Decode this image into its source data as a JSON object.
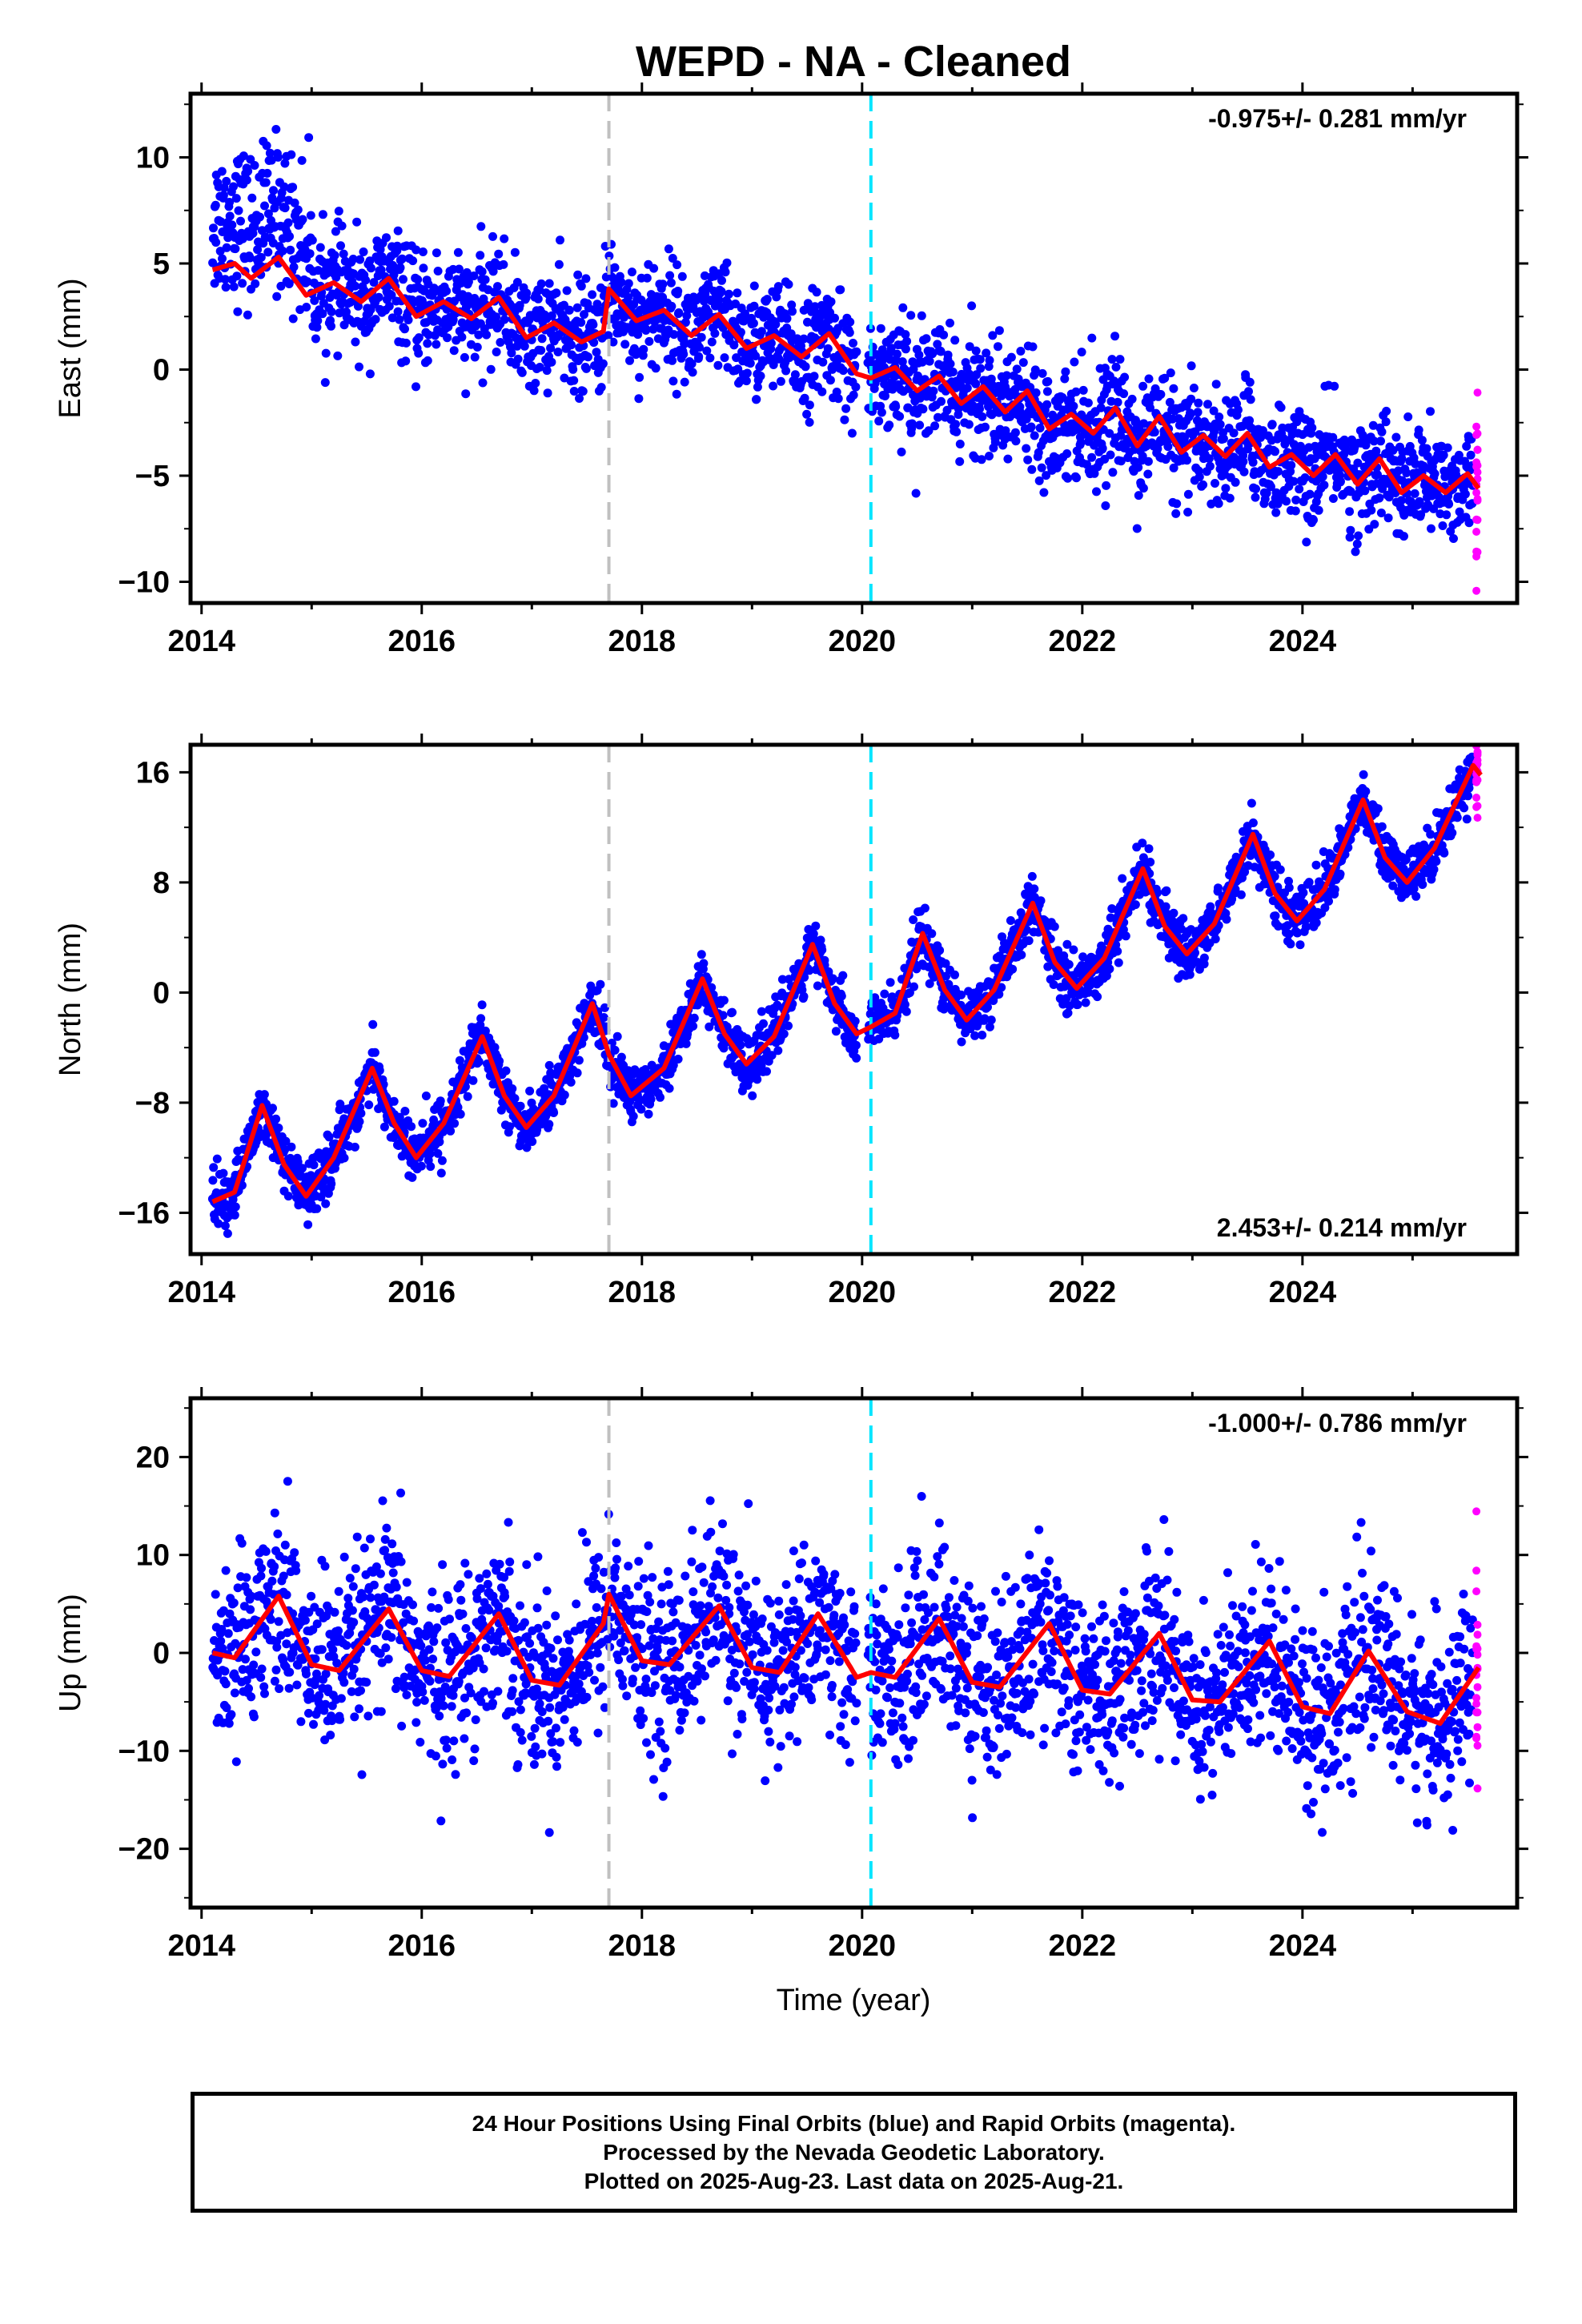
{
  "title": "WEPD  - NA - Cleaned",
  "xlabel": "Time (year)",
  "colors": {
    "final": "#0000ff",
    "rapid": "#ff00ff",
    "model": "#ff0000",
    "line_grey": "#c0c0c0",
    "line_cyan": "#00e5ff"
  },
  "footer": [
    "24 Hour Positions Using Final Orbits (blue) and Rapid Orbits (magenta).",
    "Processed by the Nevada Geodetic Laboratory.",
    "Plotted on 2025-Aug-23. Last data on 2025-Aug-21."
  ],
  "chart_data": [
    {
      "type": "scatter",
      "component": "east",
      "ylabel": "East (mm)",
      "rate_label": "-0.975+/- 0.281 mm/yr",
      "rate_position": "top-right",
      "xlim": [
        2013.9,
        2025.95
      ],
      "ylim": [
        -11,
        13
      ],
      "xticks": [
        2014,
        2016,
        2018,
        2020,
        2022,
        2024
      ],
      "yticks": [
        -10,
        -5,
        0,
        5,
        10
      ],
      "vertical_lines": [
        {
          "x": 2017.7,
          "color": "grey"
        },
        {
          "x": 2020.08,
          "color": "cyan"
        }
      ],
      "model_curve": {
        "x": [
          2014.1,
          2014.3,
          2014.45,
          2014.7,
          2014.95,
          2015.2,
          2015.45,
          2015.7,
          2015.95,
          2016.2,
          2016.45,
          2016.7,
          2016.95,
          2017.2,
          2017.45,
          2017.65,
          2017.7,
          2017.95,
          2018.2,
          2018.45,
          2018.7,
          2018.95,
          2019.2,
          2019.45,
          2019.7,
          2019.95,
          2020.08,
          2020.3,
          2020.5,
          2020.7,
          2020.9,
          2021.1,
          2021.3,
          2021.5,
          2021.7,
          2021.9,
          2022.1,
          2022.3,
          2022.5,
          2022.7,
          2022.9,
          2023.1,
          2023.3,
          2023.5,
          2023.7,
          2023.9,
          2024.1,
          2024.3,
          2024.5,
          2024.7,
          2024.9,
          2025.1,
          2025.3,
          2025.5,
          2025.6
        ],
        "y": [
          4.7,
          5.0,
          4.3,
          5.3,
          3.5,
          4.1,
          3.2,
          4.3,
          2.5,
          3.2,
          2.4,
          3.4,
          1.5,
          2.2,
          1.3,
          1.8,
          3.8,
          2.3,
          2.8,
          1.6,
          2.6,
          1.0,
          1.6,
          0.6,
          1.7,
          -0.2,
          -0.4,
          0.1,
          -1.0,
          -0.3,
          -1.6,
          -0.8,
          -2.0,
          -1.0,
          -2.8,
          -2.1,
          -3.0,
          -1.8,
          -3.6,
          -2.2,
          -3.9,
          -3.1,
          -4.1,
          -3.0,
          -4.6,
          -4.0,
          -5.0,
          -4.0,
          -5.4,
          -4.2,
          -5.8,
          -5.0,
          -5.8,
          -4.9,
          -5.6
        ],
        "note": "annual-periodic trend fit"
      }
    },
    {
      "type": "scatter",
      "component": "north",
      "ylabel": "North (mm)",
      "rate_label": "2.453+/- 0.214 mm/yr",
      "rate_position": "bottom-right",
      "xlim": [
        2013.9,
        2025.95
      ],
      "ylim": [
        -19,
        18
      ],
      "xticks": [
        2014,
        2016,
        2018,
        2020,
        2022,
        2024
      ],
      "yticks": [
        -16,
        -8,
        0,
        8,
        16
      ],
      "vertical_lines": [
        {
          "x": 2017.7,
          "color": "grey"
        },
        {
          "x": 2020.08,
          "color": "cyan"
        }
      ],
      "model_curve": {
        "x": [
          2014.1,
          2014.3,
          2014.55,
          2014.75,
          2014.95,
          2015.2,
          2015.55,
          2015.75,
          2015.95,
          2016.2,
          2016.55,
          2016.75,
          2016.95,
          2017.2,
          2017.55,
          2017.7,
          2017.9,
          2018.2,
          2018.55,
          2018.75,
          2018.95,
          2019.2,
          2019.55,
          2019.75,
          2019.95,
          2020.08,
          2020.3,
          2020.55,
          2020.75,
          2020.95,
          2021.2,
          2021.55,
          2021.75,
          2021.95,
          2022.2,
          2022.55,
          2022.75,
          2022.95,
          2023.2,
          2023.55,
          2023.75,
          2023.95,
          2024.2,
          2024.55,
          2024.75,
          2024.95,
          2025.2,
          2025.55,
          2025.62
        ],
        "y": [
          -15.2,
          -14.5,
          -8.2,
          -12.5,
          -14.8,
          -12.0,
          -5.5,
          -9.5,
          -12.0,
          -9.5,
          -3.2,
          -7.5,
          -9.8,
          -7.5,
          -0.8,
          -4.5,
          -7.5,
          -5.5,
          1.0,
          -3.0,
          -5.2,
          -3.2,
          3.5,
          -0.8,
          -3.0,
          -2.5,
          -1.5,
          4.3,
          0.2,
          -2.0,
          0.2,
          6.5,
          2.2,
          0.3,
          2.5,
          9.0,
          4.8,
          2.8,
          5.0,
          11.5,
          7.2,
          5.2,
          7.5,
          14.0,
          9.8,
          8.0,
          10.5,
          16.5,
          15.8
        ]
      }
    },
    {
      "type": "scatter",
      "component": "up",
      "ylabel": "Up (mm)",
      "rate_label": "-1.000+/- 0.786 mm/yr",
      "rate_position": "top-right",
      "xlim": [
        2013.9,
        2025.95
      ],
      "ylim": [
        -26,
        26
      ],
      "xticks": [
        2014,
        2016,
        2018,
        2020,
        2022,
        2024
      ],
      "yticks": [
        -20,
        -10,
        0,
        10,
        20
      ],
      "vertical_lines": [
        {
          "x": 2017.7,
          "color": "grey"
        },
        {
          "x": 2020.08,
          "color": "cyan"
        }
      ],
      "model_curve": {
        "x": [
          2014.1,
          2014.3,
          2014.7,
          2015.0,
          2015.25,
          2015.7,
          2016.0,
          2016.25,
          2016.7,
          2017.0,
          2017.25,
          2017.65,
          2017.7,
          2018.0,
          2018.25,
          2018.7,
          2019.0,
          2019.25,
          2019.6,
          2019.95,
          2020.08,
          2020.3,
          2020.7,
          2021.0,
          2021.25,
          2021.7,
          2022.0,
          2022.25,
          2022.7,
          2023.0,
          2023.25,
          2023.7,
          2024.0,
          2024.25,
          2024.6,
          2024.95,
          2025.25,
          2025.6
        ],
        "y": [
          0.0,
          -0.5,
          5.8,
          -1.2,
          -1.8,
          4.5,
          -1.8,
          -2.4,
          4.0,
          -2.8,
          -3.3,
          3.0,
          6.0,
          -0.8,
          -1.2,
          4.8,
          -1.5,
          -2.0,
          4.0,
          -2.5,
          -2.0,
          -2.5,
          3.5,
          -3.0,
          -3.5,
          3.0,
          -3.8,
          -4.2,
          2.0,
          -4.8,
          -5.0,
          1.2,
          -5.5,
          -6.2,
          0.2,
          -6.0,
          -7.2,
          -1.5
        ]
      }
    }
  ]
}
